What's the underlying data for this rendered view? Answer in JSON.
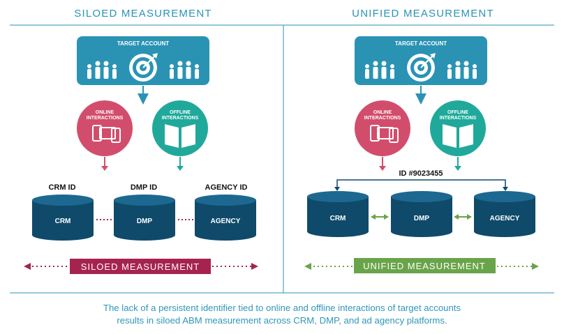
{
  "left": {
    "header": "SILOED MEASUREMENT",
    "target_label": "TARGET ACCOUNT",
    "online_label_1": "ONLINE",
    "online_label_2": "INTERACTIONS",
    "offline_label_1": "OFFLINE",
    "offline_label_2": "INTERACTIONS",
    "id_labels": [
      "CRM ID",
      "DMP ID",
      "AGENCY ID"
    ],
    "databases": [
      "CRM",
      "DMP",
      "AGENCY"
    ],
    "banner": "SILOED MEASUREMENT"
  },
  "right": {
    "header": "UNIFIED MEASUREMENT",
    "target_label": "TARGET ACCOUNT",
    "online_label_1": "ONLINE",
    "online_label_2": "INTERACTIONS",
    "offline_label_1": "OFFLINE",
    "offline_label_2": "INTERACTIONS",
    "shared_id": "ID #9023455",
    "databases": [
      "CRM",
      "DMP",
      "AGENCY"
    ],
    "banner": "UNIFIED MEASUREMENT"
  },
  "caption_line1": "The lack of a persistent identifier tied to online and offline interactions of target accounts",
  "caption_line2": "results in siloed ABM measurement across CRM, DMP, and ad agency platforms.",
  "colors": {
    "teal": "#2a93b4",
    "pink": "#d24d6c",
    "green_teal": "#20a99b",
    "navy": "#0f4a6b",
    "maroon": "#a6234f",
    "green": "#6aa44a"
  },
  "icons": [
    "people-icon",
    "target-icon",
    "devices-icon",
    "book-icon"
  ]
}
